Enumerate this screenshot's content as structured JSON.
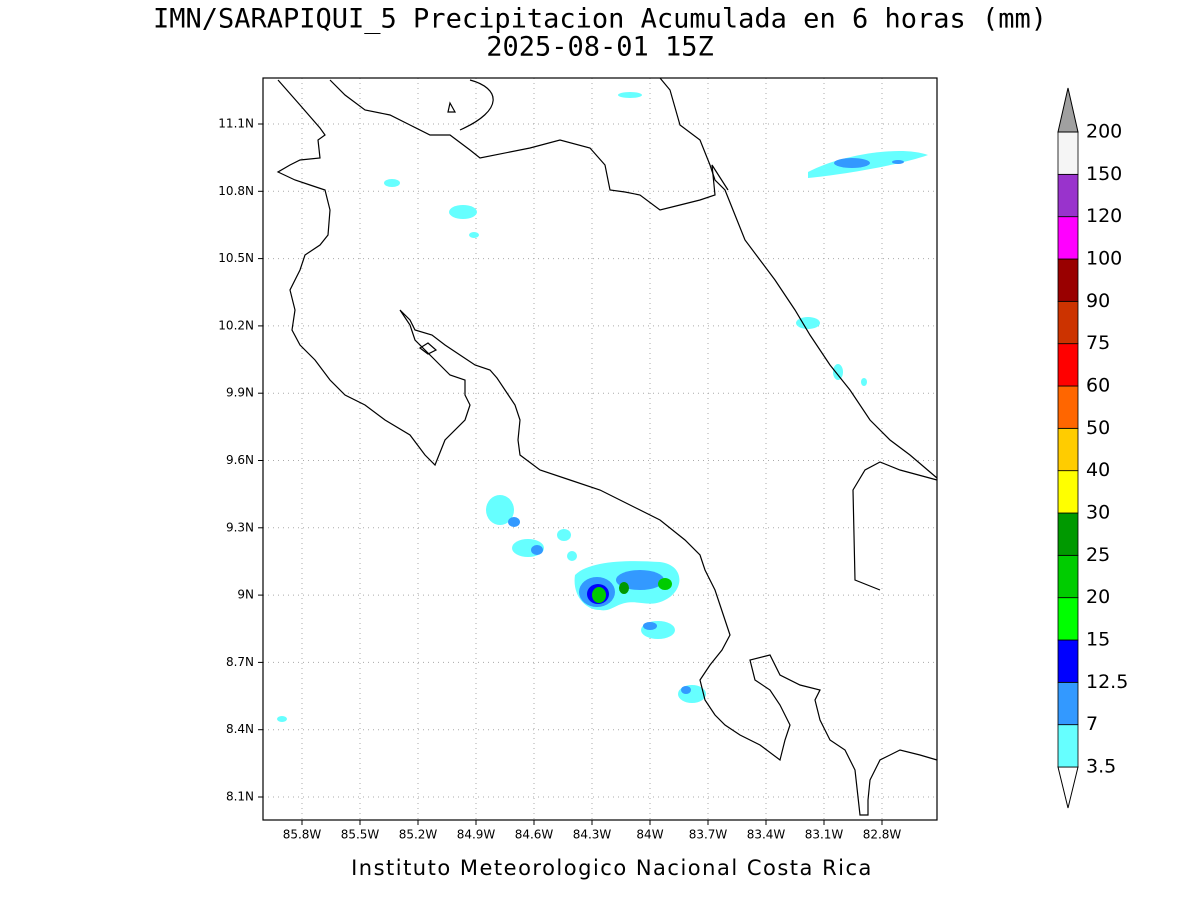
{
  "title": "IMN/SARAPIQUI_5 Precipitacion Acumulada en 6 horas (mm)",
  "subtitle": "2025-08-01 15Z",
  "footer": "Instituto Meteorologico Nacional Costa Rica",
  "map": {
    "lon_ticks": [
      "85.8W",
      "85.5W",
      "85.2W",
      "84.9W",
      "84.6W",
      "84.3W",
      "84W",
      "83.7W",
      "83.4W",
      "83.1W",
      "82.8W"
    ],
    "lat_ticks": [
      "11.1N",
      "10.8N",
      "10.5N",
      "10.2N",
      "9.9N",
      "9.6N",
      "9.3N",
      "9N",
      "8.7N",
      "8.4N",
      "8.1N"
    ]
  },
  "colorbar": {
    "labels": [
      "3.5",
      "7",
      "12.5",
      "15",
      "20",
      "25",
      "30",
      "40",
      "50",
      "60",
      "75",
      "90",
      "100",
      "120",
      "150",
      "200"
    ],
    "colors": [
      "#ffffff",
      "#66ffff",
      "#3399ff",
      "#0000ff",
      "#00ff00",
      "#00cc00",
      "#009900",
      "#ffff00",
      "#ffcc00",
      "#ff6600",
      "#ff0000",
      "#cc3300",
      "#990000",
      "#ff00ff",
      "#9933cc",
      "#f5f5f5",
      "#a0a0a0"
    ]
  }
}
